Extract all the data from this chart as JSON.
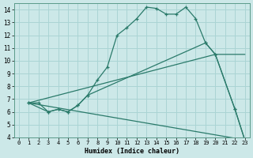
{
  "xlabel": "Humidex (Indice chaleur)",
  "bg_color": "#cce8e8",
  "grid_color": "#aad4d4",
  "line_color": "#2a7a6a",
  "xlim": [
    -0.5,
    23.5
  ],
  "ylim": [
    4,
    14.5
  ],
  "xticks": [
    0,
    1,
    2,
    3,
    4,
    5,
    6,
    7,
    8,
    9,
    10,
    11,
    12,
    13,
    14,
    15,
    16,
    17,
    18,
    19,
    20,
    21,
    22,
    23
  ],
  "yticks": [
    4,
    5,
    6,
    7,
    8,
    9,
    10,
    11,
    12,
    13,
    14
  ],
  "line1_x": [
    1,
    2,
    3,
    4,
    5,
    6,
    7,
    8,
    9,
    10,
    11,
    12,
    13,
    14,
    15,
    16,
    17,
    18,
    19,
    20,
    22,
    23
  ],
  "line1_y": [
    6.7,
    6.7,
    6.0,
    6.2,
    6.0,
    6.5,
    7.3,
    8.5,
    9.5,
    12.0,
    12.6,
    13.3,
    14.2,
    14.1,
    13.65,
    13.65,
    14.2,
    13.3,
    11.4,
    10.5,
    6.2,
    3.8
  ],
  "line2_x": [
    1,
    3,
    4,
    5,
    6,
    7,
    19,
    20,
    22,
    23
  ],
  "line2_y": [
    6.7,
    6.0,
    6.2,
    6.0,
    6.5,
    7.3,
    11.4,
    10.5,
    6.2,
    3.8
  ],
  "line3_x": [
    1,
    20,
    23
  ],
  "line3_y": [
    6.7,
    10.5,
    10.5
  ],
  "line4_x": [
    1,
    23
  ],
  "line4_y": [
    6.7,
    3.8
  ]
}
